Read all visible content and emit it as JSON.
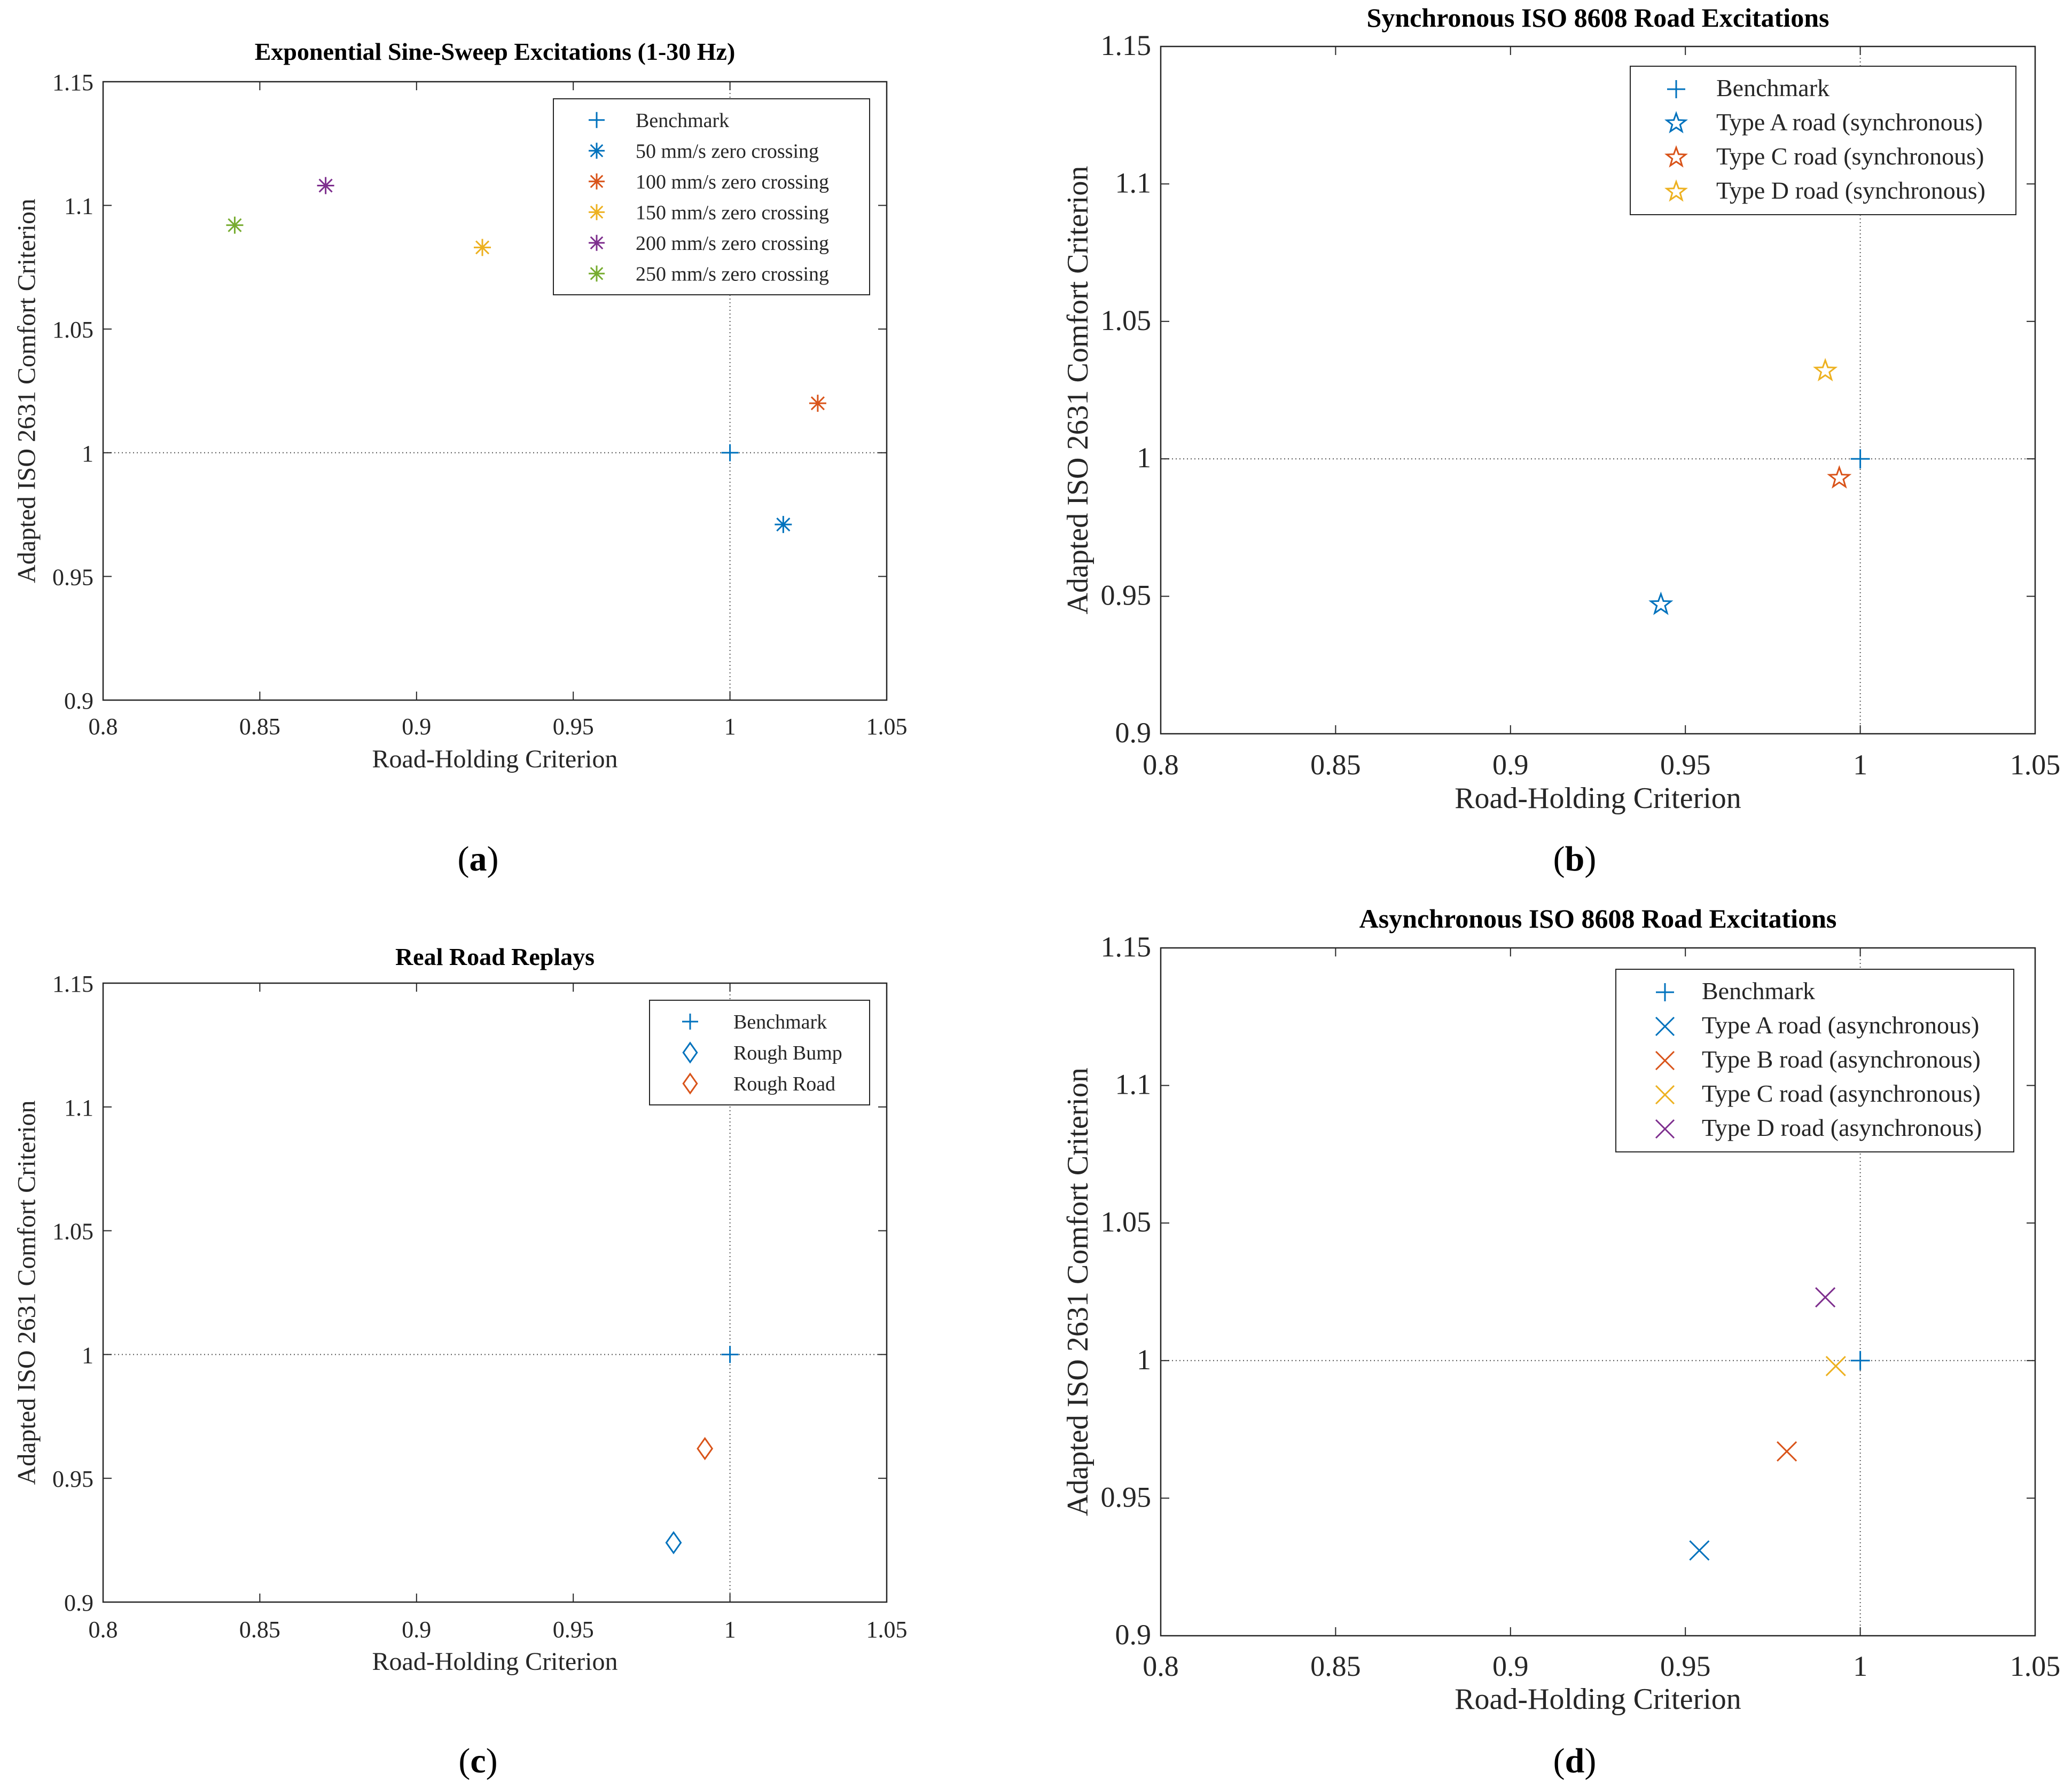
{
  "colors": {
    "blue": "#0072BD",
    "orange": "#D95319",
    "yellow": "#EDB120",
    "purple": "#7E2F8E",
    "green": "#77AC30",
    "axis": "#262626",
    "reference_line": "#555555"
  },
  "chart_data": [
    {
      "panel": "a",
      "caption_letter": "a",
      "type": "scatter",
      "title": "Exponential Sine-Sweep Excitations (1-30 Hz)",
      "xlabel": "Road-Holding Criterion",
      "ylabel": "Adapted ISO 2631 Comfort Criterion",
      "xlim": [
        0.8,
        1.05
      ],
      "ylim": [
        0.9,
        1.15
      ],
      "xticks": [
        0.8,
        0.85,
        0.9,
        0.95,
        1,
        1.05
      ],
      "xtick_labels": [
        "0.8",
        "0.85",
        "0.9",
        "0.95",
        "1",
        "1.05"
      ],
      "yticks": [
        0.9,
        0.95,
        1,
        1.05,
        1.1,
        1.15
      ],
      "ytick_labels": [
        "0.9",
        "0.95",
        "1",
        "1.05",
        "1.1",
        "1.15"
      ],
      "reference_lines": {
        "x": 1,
        "y": 1
      },
      "grid": false,
      "legend_position": "top-right",
      "series": [
        {
          "name": "Benchmark",
          "marker": "plus",
          "color": "blue",
          "x": [
            1.0
          ],
          "y": [
            1.0
          ]
        },
        {
          "name": "50 mm/s zero crossing",
          "marker": "asterisk",
          "color": "blue",
          "x": [
            1.017
          ],
          "y": [
            0.971
          ]
        },
        {
          "name": "100 mm/s zero crossing",
          "marker": "asterisk",
          "color": "orange",
          "x": [
            1.028
          ],
          "y": [
            1.02
          ]
        },
        {
          "name": "150 mm/s zero crossing",
          "marker": "asterisk",
          "color": "yellow",
          "x": [
            0.921
          ],
          "y": [
            1.083
          ]
        },
        {
          "name": "200 mm/s zero crossing",
          "marker": "asterisk",
          "color": "purple",
          "x": [
            0.871
          ],
          "y": [
            1.108
          ]
        },
        {
          "name": "250 mm/s zero crossing",
          "marker": "asterisk",
          "color": "green",
          "x": [
            0.842
          ],
          "y": [
            1.092
          ]
        }
      ]
    },
    {
      "panel": "b",
      "caption_letter": "b",
      "type": "scatter",
      "title": "Synchronous ISO 8608 Road Excitations",
      "xlabel": "Road-Holding Criterion",
      "ylabel": "Adapted ISO 2631 Comfort Criterion",
      "xlim": [
        0.8,
        1.05
      ],
      "ylim": [
        0.9,
        1.15
      ],
      "xticks": [
        0.8,
        0.85,
        0.9,
        0.95,
        1,
        1.05
      ],
      "xtick_labels": [
        "0.8",
        "0.85",
        "0.9",
        "0.95",
        "1",
        "1.05"
      ],
      "yticks": [
        0.9,
        0.95,
        1,
        1.05,
        1.1,
        1.15
      ],
      "ytick_labels": [
        "0.9",
        "0.95",
        "1",
        "1.05",
        "1.1",
        "1.15"
      ],
      "reference_lines": {
        "x": 1,
        "y": 1
      },
      "grid": false,
      "legend_position": "top-right",
      "series": [
        {
          "name": "Benchmark",
          "marker": "plus",
          "color": "blue",
          "x": [
            1.0
          ],
          "y": [
            1.0
          ]
        },
        {
          "name": "Type A road (synchronous)",
          "marker": "star",
          "color": "blue",
          "x": [
            0.943
          ],
          "y": [
            0.947
          ]
        },
        {
          "name": "Type C road (synchronous)",
          "marker": "star",
          "color": "orange",
          "x": [
            0.994
          ],
          "y": [
            0.993
          ]
        },
        {
          "name": "Type D road (synchronous)",
          "marker": "star",
          "color": "yellow",
          "x": [
            0.99
          ],
          "y": [
            1.032
          ]
        }
      ]
    },
    {
      "panel": "c",
      "caption_letter": "c",
      "type": "scatter",
      "title": "Real Road Replays",
      "xlabel": "Road-Holding Criterion",
      "ylabel": "Adapted ISO 2631 Comfort Criterion",
      "xlim": [
        0.8,
        1.05
      ],
      "ylim": [
        0.9,
        1.15
      ],
      "xticks": [
        0.8,
        0.85,
        0.9,
        0.95,
        1,
        1.05
      ],
      "xtick_labels": [
        "0.8",
        "0.85",
        "0.9",
        "0.95",
        "1",
        "1.05"
      ],
      "yticks": [
        0.9,
        0.95,
        1,
        1.05,
        1.1,
        1.15
      ],
      "ytick_labels": [
        "0.9",
        "0.95",
        "1",
        "1.05",
        "1.1",
        "1.15"
      ],
      "reference_lines": {
        "x": 1,
        "y": 1
      },
      "grid": false,
      "legend_position": "top-right",
      "series": [
        {
          "name": "Benchmark",
          "marker": "plus",
          "color": "blue",
          "x": [
            1.0
          ],
          "y": [
            1.0
          ]
        },
        {
          "name": "Rough Bump",
          "marker": "diamond",
          "color": "blue",
          "x": [
            0.982
          ],
          "y": [
            0.924
          ]
        },
        {
          "name": "Rough Road",
          "marker": "diamond",
          "color": "orange",
          "x": [
            0.992
          ],
          "y": [
            0.962
          ]
        }
      ]
    },
    {
      "panel": "d",
      "caption_letter": "d",
      "type": "scatter",
      "title": "Asynchronous ISO 8608 Road Excitations",
      "xlabel": "Road-Holding Criterion",
      "ylabel": "Adapted ISO 2631 Comfort Criterion",
      "xlim": [
        0.8,
        1.05
      ],
      "ylim": [
        0.9,
        1.15
      ],
      "xticks": [
        0.8,
        0.85,
        0.9,
        0.95,
        1,
        1.05
      ],
      "xtick_labels": [
        "0.8",
        "0.85",
        "0.9",
        "0.95",
        "1",
        "1.05"
      ],
      "yticks": [
        0.9,
        0.95,
        1,
        1.05,
        1.1,
        1.15
      ],
      "ytick_labels": [
        "0.9",
        "0.95",
        "1",
        "1.05",
        "1.1",
        "1.15"
      ],
      "reference_lines": {
        "x": 1,
        "y": 1
      },
      "grid": false,
      "legend_position": "top-right",
      "series": [
        {
          "name": "Benchmark",
          "marker": "plus",
          "color": "blue",
          "x": [
            1.0
          ],
          "y": [
            1.0
          ]
        },
        {
          "name": "Type A road (asynchronous)",
          "marker": "cross",
          "color": "blue",
          "x": [
            0.954
          ],
          "y": [
            0.931
          ]
        },
        {
          "name": "Type B road (asynchronous)",
          "marker": "cross",
          "color": "orange",
          "x": [
            0.979
          ],
          "y": [
            0.967
          ]
        },
        {
          "name": "Type C road (asynchronous)",
          "marker": "cross",
          "color": "yellow",
          "x": [
            0.993
          ],
          "y": [
            0.998
          ]
        },
        {
          "name": "Type D road (asynchronous)",
          "marker": "cross",
          "color": "purple",
          "x": [
            0.99
          ],
          "y": [
            1.023
          ]
        }
      ]
    }
  ]
}
